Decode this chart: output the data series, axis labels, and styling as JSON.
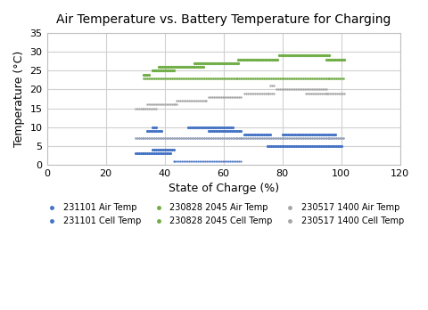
{
  "title": "Air Temperature vs. Battery Temperature for Charging",
  "xlabel": "State of Charge (%)",
  "ylabel": "Temperature (°C)",
  "xlim": [
    0,
    120
  ],
  "ylim": [
    0,
    35
  ],
  "xticks": [
    0,
    20,
    40,
    60,
    80,
    100,
    120
  ],
  "yticks": [
    0,
    5,
    10,
    15,
    20,
    25,
    30,
    35
  ],
  "bg_color": "#F2F2F2",
  "series": [
    {
      "label": "231101 Air Temp",
      "color": "#4472C4",
      "marker": ".",
      "size": 20,
      "segments": [
        {
          "x_start": 30,
          "x_end": 42,
          "y": 3
        },
        {
          "x_start": 34,
          "x_end": 39,
          "y": 9
        },
        {
          "x_start": 36,
          "x_end": 43,
          "y": 4
        },
        {
          "x_start": 36,
          "x_end": 37,
          "y": 10
        },
        {
          "x_start": 48,
          "x_end": 63,
          "y": 10
        },
        {
          "x_start": 55,
          "x_end": 66,
          "y": 9
        },
        {
          "x_start": 67,
          "x_end": 76,
          "y": 8
        },
        {
          "x_start": 80,
          "x_end": 98,
          "y": 8
        },
        {
          "x_start": 75,
          "x_end": 100,
          "y": 5
        }
      ]
    },
    {
      "label": "231101 Cell Temp",
      "color": "#4472C4",
      "marker": ".",
      "size": 10,
      "segments": [
        {
          "x_start": 30,
          "x_end": 66,
          "y": 7
        },
        {
          "x_start": 43,
          "x_end": 66,
          "y": 1
        },
        {
          "x_start": 66,
          "x_end": 101,
          "y": 7
        }
      ]
    },
    {
      "label": "230828 2045 Air Temp",
      "color": "#70AD47",
      "marker": ".",
      "size": 22,
      "segments": [
        {
          "x_start": 33,
          "x_end": 35,
          "y": 24
        },
        {
          "x_start": 36,
          "x_end": 43,
          "y": 25
        },
        {
          "x_start": 38,
          "x_end": 53,
          "y": 26
        },
        {
          "x_start": 50,
          "x_end": 65,
          "y": 27
        },
        {
          "x_start": 65,
          "x_end": 78,
          "y": 28
        },
        {
          "x_start": 79,
          "x_end": 96,
          "y": 29
        },
        {
          "x_start": 95,
          "x_end": 101,
          "y": 28
        }
      ]
    },
    {
      "label": "230828 2045 Cell Temp",
      "color": "#70AD47",
      "marker": ".",
      "size": 14,
      "segments": [
        {
          "x_start": 33,
          "x_end": 101,
          "y": 23
        }
      ]
    },
    {
      "label": "230517 1400 Air Temp",
      "color": "#A6A6A6",
      "marker": ".",
      "size": 12,
      "segments": [
        {
          "x_start": 30,
          "x_end": 37,
          "y": 15
        },
        {
          "x_start": 34,
          "x_end": 44,
          "y": 16
        },
        {
          "x_start": 44,
          "x_end": 54,
          "y": 17
        },
        {
          "x_start": 55,
          "x_end": 66,
          "y": 18
        },
        {
          "x_start": 67,
          "x_end": 77,
          "y": 19
        },
        {
          "x_start": 76,
          "x_end": 77,
          "y": 21
        },
        {
          "x_start": 78,
          "x_end": 95,
          "y": 20
        },
        {
          "x_start": 88,
          "x_end": 95,
          "y": 19
        },
        {
          "x_start": 95,
          "x_end": 101,
          "y": 19
        }
      ]
    },
    {
      "label": "230517 1400 Cell Temp",
      "color": "#A6A6A6",
      "marker": ".",
      "size": 8,
      "segments": [
        {
          "x_start": 30,
          "x_end": 101,
          "y": 7
        }
      ]
    }
  ]
}
